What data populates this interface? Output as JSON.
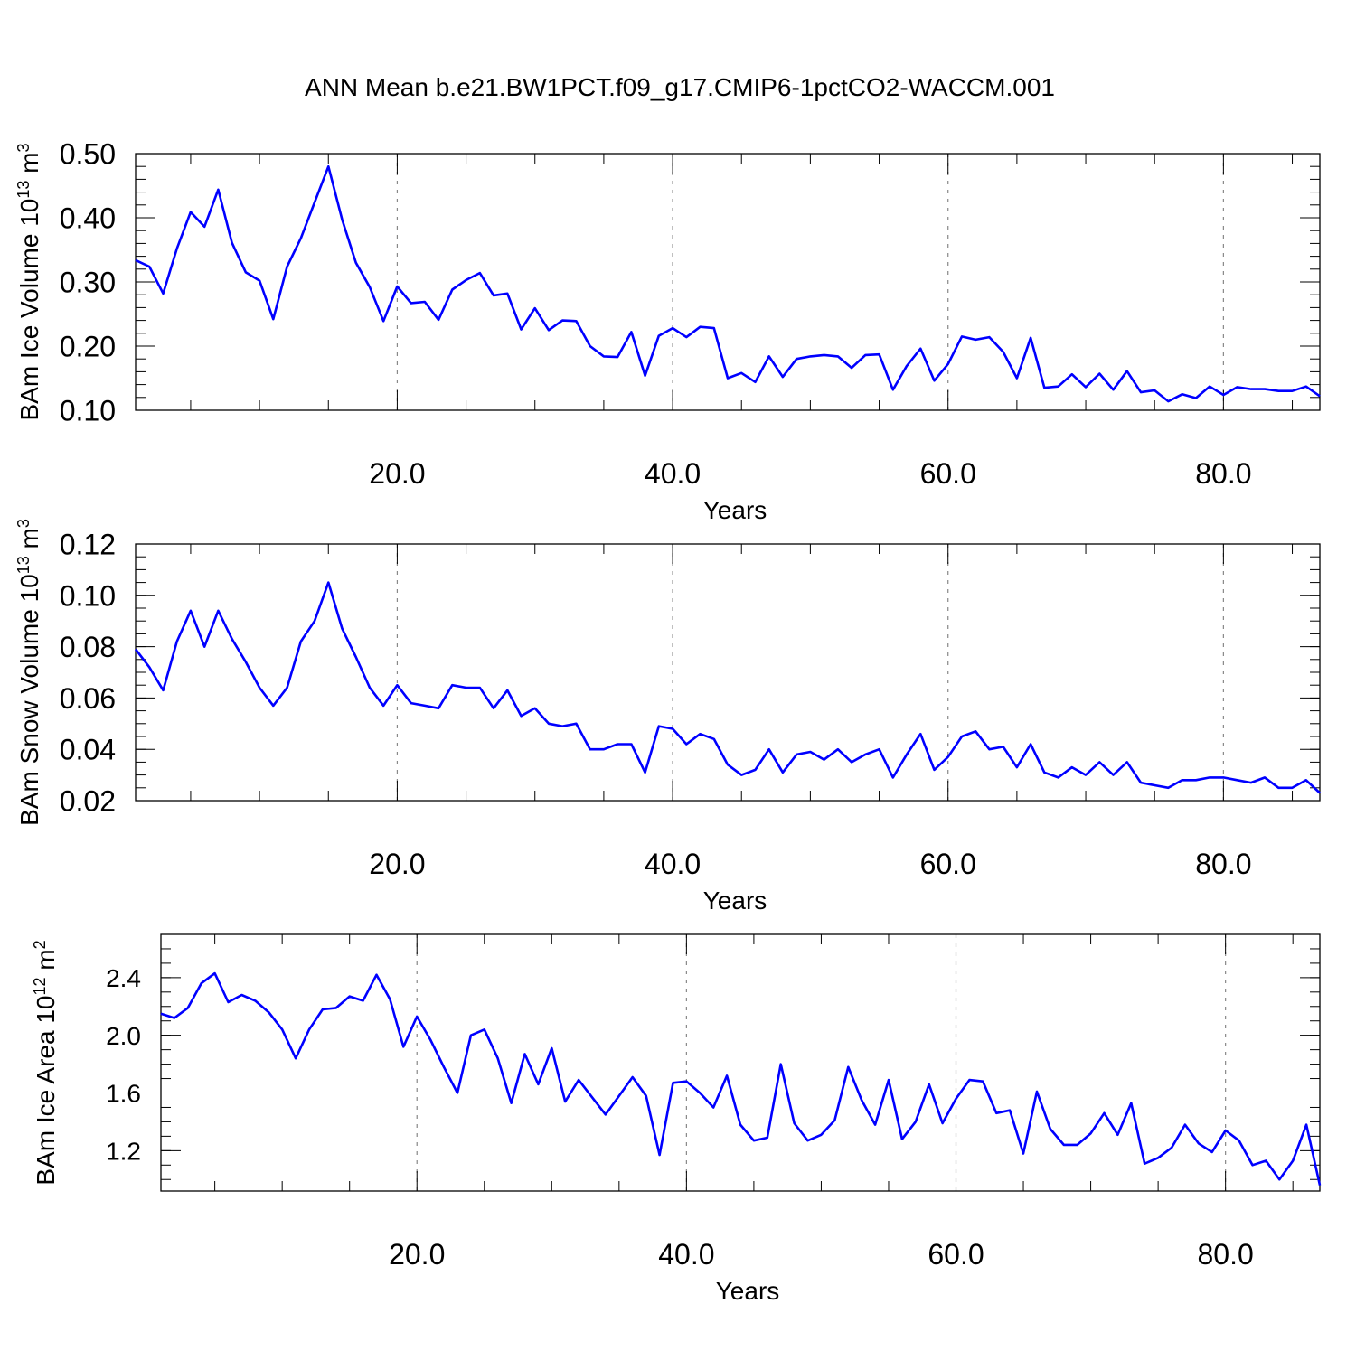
{
  "title": "ANN Mean b.e21.BW1PCT.f09_g17.CMIP6-1pctCO2-WACCM.001",
  "colors": {
    "line": "#0000ff",
    "frame": "#000000",
    "grid": "#888888"
  },
  "chart_data": [
    {
      "type": "line",
      "ylabel": {
        "main": "BAm Ice Volume 10",
        "exp": "13",
        "unit": " m",
        "unit_exp": "3"
      },
      "xlabel": "Years",
      "xlim": [
        1,
        87
      ],
      "ylim": [
        0.1,
        0.5
      ],
      "x_ticks": [
        20,
        40,
        60,
        80
      ],
      "x_tick_labels": [
        "20.0",
        "40.0",
        "60.0",
        "80.0"
      ],
      "y_ticks": [
        0.1,
        0.2,
        0.3,
        0.4,
        0.5
      ],
      "y_tick_labels": [
        "0.10",
        "0.20",
        "0.30",
        "0.40",
        "0.50"
      ],
      "y_minor_step": 0.02,
      "vgrid": [
        20,
        40,
        60,
        80
      ],
      "values": [
        0.334,
        0.324,
        0.282,
        0.352,
        0.409,
        0.386,
        0.444,
        0.361,
        0.315,
        0.302,
        0.242,
        0.324,
        0.368,
        0.424,
        0.48,
        0.397,
        0.33,
        0.292,
        0.239,
        0.293,
        0.267,
        0.269,
        0.241,
        0.288,
        0.303,
        0.314,
        0.279,
        0.282,
        0.226,
        0.259,
        0.225,
        0.24,
        0.239,
        0.2,
        0.184,
        0.183,
        0.222,
        0.154,
        0.216,
        0.228,
        0.214,
        0.23,
        0.228,
        0.15,
        0.158,
        0.144,
        0.184,
        0.152,
        0.18,
        0.184,
        0.186,
        0.184,
        0.166,
        0.186,
        0.187,
        0.132,
        0.169,
        0.196,
        0.146,
        0.172,
        0.215,
        0.21,
        0.214,
        0.191,
        0.15,
        0.213,
        0.135,
        0.137,
        0.156,
        0.136,
        0.157,
        0.132,
        0.161,
        0.128,
        0.131,
        0.114,
        0.125,
        0.119,
        0.137,
        0.124,
        0.136,
        0.133,
        0.133,
        0.13,
        0.13,
        0.137,
        0.122
      ]
    },
    {
      "type": "line",
      "ylabel": {
        "main": "BAm Snow Volume 10",
        "exp": "13",
        "unit": " m",
        "unit_exp": "3"
      },
      "xlabel": "Years",
      "xlim": [
        1,
        87
      ],
      "ylim": [
        0.02,
        0.12
      ],
      "x_ticks": [
        20,
        40,
        60,
        80
      ],
      "x_tick_labels": [
        "20.0",
        "40.0",
        "60.0",
        "80.0"
      ],
      "y_ticks": [
        0.02,
        0.04,
        0.06,
        0.08,
        0.1,
        0.12
      ],
      "y_tick_labels": [
        "0.02",
        "0.04",
        "0.06",
        "0.08",
        "0.10",
        "0.12"
      ],
      "y_minor_step": 0.005,
      "vgrid": [
        20,
        40,
        60,
        80
      ],
      "values": [
        0.079,
        0.072,
        0.063,
        0.082,
        0.094,
        0.08,
        0.094,
        0.083,
        0.074,
        0.064,
        0.057,
        0.064,
        0.082,
        0.09,
        0.105,
        0.087,
        0.076,
        0.064,
        0.057,
        0.065,
        0.058,
        0.057,
        0.056,
        0.065,
        0.064,
        0.064,
        0.056,
        0.063,
        0.053,
        0.056,
        0.05,
        0.049,
        0.05,
        0.04,
        0.04,
        0.042,
        0.042,
        0.031,
        0.049,
        0.048,
        0.042,
        0.046,
        0.044,
        0.034,
        0.03,
        0.032,
        0.04,
        0.031,
        0.038,
        0.039,
        0.036,
        0.04,
        0.035,
        0.038,
        0.04,
        0.029,
        0.038,
        0.046,
        0.032,
        0.037,
        0.045,
        0.047,
        0.04,
        0.041,
        0.033,
        0.042,
        0.031,
        0.029,
        0.033,
        0.03,
        0.035,
        0.03,
        0.035,
        0.027,
        0.026,
        0.025,
        0.028,
        0.028,
        0.029,
        0.029,
        0.028,
        0.027,
        0.029,
        0.025,
        0.025,
        0.028,
        0.023
      ]
    },
    {
      "type": "line",
      "ylabel": {
        "main": "BAm Ice Area 10",
        "exp": "12",
        "unit": " m",
        "unit_exp": "2"
      },
      "xlabel": "Years",
      "xlim": [
        1,
        87
      ],
      "ylim": [
        0.92,
        2.7
      ],
      "x_ticks": [
        20,
        40,
        60,
        80
      ],
      "x_tick_labels": [
        "20.0",
        "40.0",
        "60.0",
        "80.0"
      ],
      "y_ticks": [
        1.2,
        1.6,
        2.0,
        2.4
      ],
      "y_tick_labels": [
        "1.2",
        "1.6",
        "2.0",
        "2.4"
      ],
      "y_minor_step": 0.1,
      "vgrid": [
        20,
        40,
        60,
        80
      ],
      "values": [
        2.15,
        2.12,
        2.19,
        2.36,
        2.43,
        2.23,
        2.28,
        2.24,
        2.16,
        2.04,
        1.84,
        2.04,
        2.18,
        2.19,
        2.27,
        2.24,
        2.42,
        2.25,
        1.92,
        2.13,
        1.97,
        1.78,
        1.6,
        2.0,
        2.04,
        1.84,
        1.53,
        1.87,
        1.66,
        1.91,
        1.54,
        1.69,
        1.57,
        1.45,
        1.58,
        1.71,
        1.58,
        1.17,
        1.67,
        1.68,
        1.6,
        1.5,
        1.72,
        1.38,
        1.27,
        1.29,
        1.8,
        1.39,
        1.27,
        1.31,
        1.41,
        1.78,
        1.55,
        1.38,
        1.69,
        1.28,
        1.4,
        1.66,
        1.39,
        1.56,
        1.69,
        1.68,
        1.46,
        1.48,
        1.18,
        1.61,
        1.35,
        1.24,
        1.24,
        1.32,
        1.46,
        1.31,
        1.53,
        1.11,
        1.15,
        1.22,
        1.38,
        1.25,
        1.19,
        1.34,
        1.27,
        1.1,
        1.13,
        1.0,
        1.13,
        1.38,
        0.96
      ]
    }
  ]
}
